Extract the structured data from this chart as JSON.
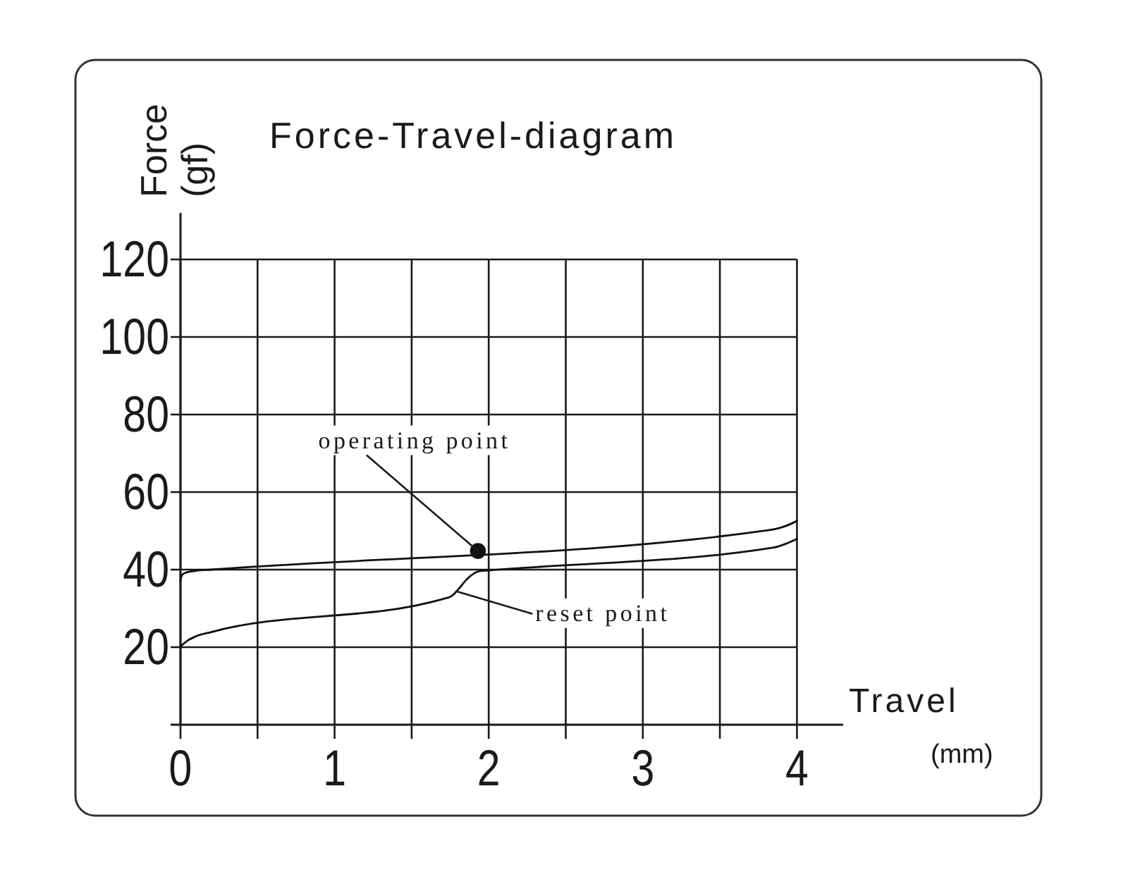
{
  "chart_data": {
    "type": "line",
    "title": "Force-Travel-diagram",
    "xlabel": "Travel (mm)",
    "ylabel": "Force (gf)",
    "xlim": [
      0,
      4.3
    ],
    "ylim": [
      0,
      132
    ],
    "xticks": [
      0,
      {
        "value": 0.5,
        "label": null
      },
      1,
      {
        "value": 1.5,
        "label": null
      },
      2,
      {
        "value": 2.5,
        "label": null
      },
      3,
      {
        "value": 3.5,
        "label": null
      },
      4
    ],
    "yticks": [
      20,
      40,
      60,
      80,
      100,
      120
    ],
    "grid": true,
    "line_style": "solid",
    "series": [
      {
        "color": "#111111",
        "x": [
          0,
          0.01,
          0.04,
          0.1,
          0.2,
          3.82,
          3.9,
          3.96,
          4.0
        ],
        "values": [
          37.2,
          38.6,
          39.3,
          39.7,
          40.0,
          50.2,
          50.9,
          51.8,
          52.6
        ]
      },
      {
        "color": "#111111",
        "x": [
          0,
          0.05,
          0.1,
          0.2,
          1.7,
          1.76,
          1.8,
          1.86,
          1.94,
          2.0,
          3.85,
          3.93,
          4.0
        ],
        "values": [
          20.2,
          21.8,
          22.8,
          23.9,
          32.4,
          33.2,
          34.8,
          37.6,
          39.6,
          39.8,
          45.7,
          46.7,
          47.9
        ]
      },
      {
        "type": "scatter",
        "color": "#111111",
        "marker": "circle",
        "x": [
          1.93
        ],
        "values": [
          44.8
        ]
      }
    ],
    "annotations": [
      {
        "text": "operating point",
        "x": 1.93,
        "y": 44.8
      },
      {
        "text": "reset point",
        "x": 1.79,
        "y": 34.4
      }
    ]
  }
}
